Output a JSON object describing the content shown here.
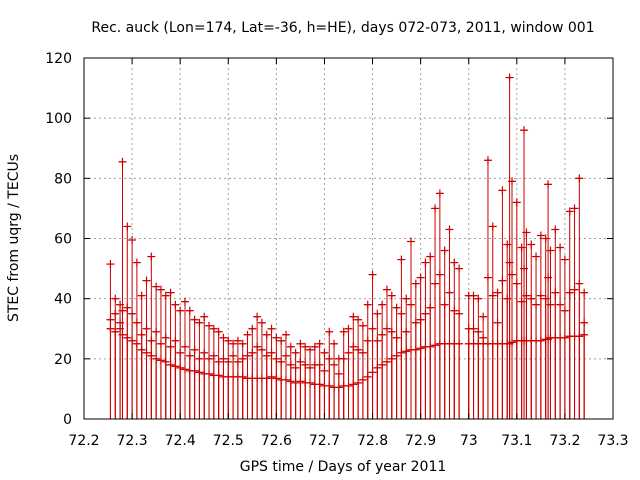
{
  "chart_data": {
    "type": "scatter",
    "title": "Rec. auck (Lon=174, Lat=-36, h=HE), days 072-073, 2011, window 001",
    "xlabel": "GPS time / Days of year 2011",
    "ylabel": "STEC from uqrg / TECUs",
    "xlim": [
      72.2,
      73.3
    ],
    "ylim": [
      0,
      120
    ],
    "x_ticks": [
      "72.2",
      "72.3",
      "72.4",
      "72.5",
      "72.6",
      "72.7",
      "72.8",
      "72.9",
      "73",
      "73.1",
      "73.2",
      "73.3"
    ],
    "y_ticks": [
      "0",
      "20",
      "40",
      "60",
      "80",
      "100",
      "120"
    ],
    "grid": true,
    "error_bars": "from 0 to value",
    "color": "#cc0000",
    "series": [
      {
        "values": [
          [
            72.255,
            51.5
          ],
          [
            72.265,
            40
          ],
          [
            72.275,
            38
          ],
          [
            72.28,
            85.5
          ],
          [
            72.29,
            64
          ],
          [
            72.3,
            59.5
          ],
          [
            72.31,
            52
          ],
          [
            72.32,
            41
          ],
          [
            72.33,
            46
          ],
          [
            72.34,
            54
          ],
          [
            72.35,
            44
          ],
          [
            72.36,
            43
          ],
          [
            72.37,
            41
          ],
          [
            72.38,
            42
          ],
          [
            72.39,
            38
          ],
          [
            72.4,
            36
          ],
          [
            72.41,
            39
          ],
          [
            72.42,
            36
          ],
          [
            72.43,
            33
          ],
          [
            72.44,
            32
          ],
          [
            72.45,
            34
          ],
          [
            72.46,
            31
          ],
          [
            72.47,
            30
          ],
          [
            72.48,
            29
          ],
          [
            72.49,
            27
          ],
          [
            72.5,
            26
          ],
          [
            72.51,
            25
          ],
          [
            72.52,
            26
          ],
          [
            72.53,
            25
          ],
          [
            72.54,
            28
          ],
          [
            72.55,
            30
          ],
          [
            72.56,
            34
          ],
          [
            72.57,
            32
          ],
          [
            72.58,
            28
          ],
          [
            72.59,
            30
          ],
          [
            72.6,
            27
          ],
          [
            72.61,
            26
          ],
          [
            72.62,
            28
          ],
          [
            72.63,
            24
          ],
          [
            72.64,
            22
          ],
          [
            72.65,
            25
          ],
          [
            72.66,
            24
          ],
          [
            72.67,
            23
          ],
          [
            72.68,
            24
          ],
          [
            72.69,
            25
          ],
          [
            72.7,
            22
          ],
          [
            72.71,
            29
          ],
          [
            72.72,
            25
          ],
          [
            72.73,
            20
          ],
          [
            72.74,
            29
          ],
          [
            72.75,
            30
          ],
          [
            72.76,
            34
          ],
          [
            72.77,
            33
          ],
          [
            72.78,
            31
          ],
          [
            72.79,
            38
          ],
          [
            72.8,
            48
          ],
          [
            72.81,
            35
          ],
          [
            72.82,
            38
          ],
          [
            72.83,
            43
          ],
          [
            72.84,
            41
          ],
          [
            72.85,
            37
          ],
          [
            72.86,
            53
          ],
          [
            72.87,
            40
          ],
          [
            72.88,
            59
          ],
          [
            72.89,
            45
          ],
          [
            72.9,
            47
          ],
          [
            72.91,
            52
          ],
          [
            72.92,
            54
          ],
          [
            72.93,
            70
          ],
          [
            72.94,
            75
          ],
          [
            72.95,
            56
          ],
          [
            72.96,
            63
          ],
          [
            72.97,
            52
          ],
          [
            72.98,
            50
          ],
          [
            73.0,
            41
          ],
          [
            73.01,
            41
          ],
          [
            73.02,
            40
          ],
          [
            73.03,
            34
          ],
          [
            73.04,
            86
          ],
          [
            73.05,
            64
          ],
          [
            73.06,
            42
          ],
          [
            73.07,
            76
          ],
          [
            73.08,
            58
          ],
          [
            73.085,
            113.5
          ],
          [
            73.09,
            79
          ],
          [
            73.1,
            72
          ],
          [
            73.11,
            57
          ],
          [
            73.115,
            96
          ],
          [
            73.12,
            62
          ],
          [
            73.13,
            58
          ],
          [
            73.14,
            54
          ],
          [
            73.15,
            61
          ],
          [
            73.16,
            60
          ],
          [
            73.165,
            78
          ],
          [
            73.17,
            56
          ],
          [
            73.18,
            63
          ],
          [
            73.19,
            57
          ],
          [
            73.2,
            53
          ],
          [
            73.21,
            69
          ],
          [
            73.22,
            70
          ],
          [
            73.23,
            80
          ],
          [
            73.24,
            42
          ]
        ]
      },
      {
        "values": [
          [
            72.255,
            30
          ],
          [
            72.265,
            35
          ],
          [
            72.275,
            32
          ],
          [
            72.28,
            36
          ],
          [
            72.29,
            37
          ],
          [
            72.3,
            35
          ],
          [
            72.31,
            32
          ],
          [
            72.32,
            28
          ],
          [
            72.33,
            30
          ],
          [
            72.34,
            26
          ],
          [
            72.35,
            29
          ],
          [
            72.36,
            25
          ],
          [
            72.37,
            27
          ],
          [
            72.38,
            24
          ],
          [
            72.39,
            26
          ],
          [
            72.4,
            22
          ],
          [
            72.41,
            24
          ],
          [
            72.42,
            21
          ],
          [
            72.43,
            23
          ],
          [
            72.44,
            20
          ],
          [
            72.45,
            22
          ],
          [
            72.46,
            20
          ],
          [
            72.47,
            21
          ],
          [
            72.48,
            19
          ],
          [
            72.49,
            20
          ],
          [
            72.5,
            19
          ],
          [
            72.51,
            21
          ],
          [
            72.52,
            19
          ],
          [
            72.53,
            20
          ],
          [
            72.54,
            21
          ],
          [
            72.55,
            22
          ],
          [
            72.56,
            24
          ],
          [
            72.57,
            23
          ],
          [
            72.58,
            21
          ],
          [
            72.59,
            22
          ],
          [
            72.6,
            20
          ],
          [
            72.61,
            19
          ],
          [
            72.62,
            21
          ],
          [
            72.63,
            18
          ],
          [
            72.64,
            17
          ],
          [
            72.65,
            19
          ],
          [
            72.66,
            18
          ],
          [
            72.67,
            17
          ],
          [
            72.68,
            18
          ],
          [
            72.69,
            18
          ],
          [
            72.7,
            16
          ],
          [
            72.71,
            20
          ],
          [
            72.72,
            18
          ],
          [
            72.73,
            15
          ],
          [
            72.74,
            20
          ],
          [
            72.75,
            22
          ],
          [
            72.76,
            24
          ],
          [
            72.77,
            23
          ],
          [
            72.78,
            22
          ],
          [
            72.79,
            26
          ],
          [
            72.8,
            30
          ],
          [
            72.81,
            26
          ],
          [
            72.82,
            28
          ],
          [
            72.83,
            30
          ],
          [
            72.84,
            29
          ],
          [
            72.85,
            27
          ],
          [
            72.86,
            35
          ],
          [
            72.87,
            29
          ],
          [
            72.88,
            38
          ],
          [
            72.89,
            32
          ],
          [
            72.9,
            33
          ],
          [
            72.91,
            35
          ],
          [
            72.92,
            37
          ],
          [
            72.93,
            45
          ],
          [
            72.94,
            48
          ],
          [
            72.95,
            38
          ],
          [
            72.96,
            42
          ],
          [
            72.97,
            36
          ],
          [
            72.98,
            35
          ],
          [
            73.0,
            30
          ],
          [
            73.01,
            30
          ],
          [
            73.02,
            29
          ],
          [
            73.03,
            27
          ],
          [
            73.04,
            47
          ],
          [
            73.05,
            41
          ],
          [
            73.06,
            32
          ],
          [
            73.07,
            46
          ],
          [
            73.08,
            40
          ],
          [
            73.085,
            52
          ],
          [
            73.09,
            48
          ],
          [
            73.1,
            45
          ],
          [
            73.11,
            39
          ],
          [
            73.115,
            50
          ],
          [
            73.12,
            41
          ],
          [
            73.13,
            40
          ],
          [
            73.14,
            38
          ],
          [
            73.15,
            41
          ],
          [
            73.16,
            40
          ],
          [
            73.165,
            47
          ],
          [
            73.17,
            38
          ],
          [
            73.18,
            42
          ],
          [
            73.19,
            38
          ],
          [
            73.2,
            36
          ],
          [
            73.21,
            42
          ],
          [
            73.22,
            43
          ],
          [
            73.23,
            45
          ],
          [
            73.24,
            32
          ]
        ]
      },
      {
        "values": [
          [
            72.255,
            33
          ],
          [
            72.265,
            29
          ],
          [
            72.275,
            30
          ],
          [
            72.28,
            28
          ],
          [
            72.29,
            27
          ],
          [
            72.3,
            26
          ],
          [
            72.31,
            25
          ],
          [
            72.32,
            23
          ],
          [
            72.33,
            22
          ],
          [
            72.34,
            21
          ],
          [
            72.35,
            20
          ],
          [
            72.36,
            19.5
          ],
          [
            72.37,
            19
          ],
          [
            72.38,
            18
          ],
          [
            72.39,
            17.5
          ],
          [
            72.4,
            17
          ],
          [
            72.41,
            16.5
          ],
          [
            72.42,
            16
          ],
          [
            72.43,
            16
          ],
          [
            72.44,
            15.5
          ],
          [
            72.45,
            15
          ],
          [
            72.46,
            15
          ],
          [
            72.47,
            14.5
          ],
          [
            72.48,
            14.5
          ],
          [
            72.49,
            14
          ],
          [
            72.5,
            14
          ],
          [
            72.51,
            14
          ],
          [
            72.52,
            14
          ],
          [
            72.53,
            14
          ],
          [
            72.54,
            13.5
          ],
          [
            72.55,
            13.5
          ],
          [
            72.56,
            13.5
          ],
          [
            72.57,
            13.5
          ],
          [
            72.58,
            13.5
          ],
          [
            72.59,
            14
          ],
          [
            72.6,
            13.5
          ],
          [
            72.61,
            13
          ],
          [
            72.62,
            13
          ],
          [
            72.63,
            12.5
          ],
          [
            72.64,
            12
          ],
          [
            72.65,
            12.5
          ],
          [
            72.66,
            12
          ],
          [
            72.67,
            12
          ],
          [
            72.68,
            11.5
          ],
          [
            72.69,
            11.5
          ],
          [
            72.7,
            11
          ],
          [
            72.71,
            11
          ],
          [
            72.72,
            10.5
          ],
          [
            72.73,
            10.5
          ],
          [
            72.74,
            11
          ],
          [
            72.75,
            11
          ],
          [
            72.76,
            11.5
          ],
          [
            72.77,
            12
          ],
          [
            72.78,
            13
          ],
          [
            72.79,
            14
          ],
          [
            72.8,
            15.5
          ],
          [
            72.81,
            17
          ],
          [
            72.82,
            18
          ],
          [
            72.83,
            19
          ],
          [
            72.84,
            20
          ],
          [
            72.85,
            21
          ],
          [
            72.86,
            22
          ],
          [
            72.87,
            22.5
          ],
          [
            72.88,
            23
          ],
          [
            72.89,
            23
          ],
          [
            72.9,
            23.5
          ],
          [
            72.91,
            24
          ],
          [
            72.92,
            24
          ],
          [
            72.93,
            24.5
          ],
          [
            72.94,
            25
          ],
          [
            72.95,
            25
          ],
          [
            72.96,
            25
          ],
          [
            72.97,
            25
          ],
          [
            72.98,
            25
          ],
          [
            73.0,
            25
          ],
          [
            73.01,
            25
          ],
          [
            73.02,
            25
          ],
          [
            73.03,
            25
          ],
          [
            73.04,
            25
          ],
          [
            73.05,
            25
          ],
          [
            73.06,
            25
          ],
          [
            73.07,
            25
          ],
          [
            73.08,
            25
          ],
          [
            73.085,
            25
          ],
          [
            73.09,
            25.5
          ],
          [
            73.1,
            26
          ],
          [
            73.11,
            26
          ],
          [
            73.115,
            26
          ],
          [
            73.12,
            26
          ],
          [
            73.13,
            26
          ],
          [
            73.14,
            26
          ],
          [
            73.15,
            26
          ],
          [
            73.16,
            26.5
          ],
          [
            73.165,
            26.5
          ],
          [
            73.17,
            27
          ],
          [
            73.18,
            27
          ],
          [
            73.19,
            27
          ],
          [
            73.2,
            27
          ],
          [
            73.21,
            27.5
          ],
          [
            73.22,
            27.5
          ],
          [
            73.23,
            27.5
          ],
          [
            73.24,
            28
          ]
        ]
      }
    ]
  }
}
